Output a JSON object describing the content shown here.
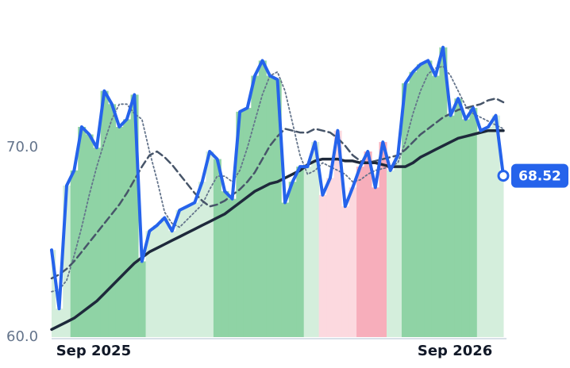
{
  "chart_data": {
    "type": "line",
    "categories": [
      null,
      null,
      null,
      null,
      null,
      null,
      "Sep 2025",
      null,
      null,
      null,
      null,
      null,
      null,
      null,
      null,
      null,
      null,
      null,
      null,
      null,
      null,
      null,
      null,
      null,
      null,
      null,
      null,
      null,
      null,
      null,
      null,
      null,
      null,
      null,
      null,
      null,
      null,
      null,
      null,
      null,
      null,
      null,
      null,
      null,
      null,
      null,
      null,
      null,
      null,
      null,
      null,
      null,
      null,
      null,
      "Sep 2026",
      null,
      null,
      null,
      null,
      null,
      null
    ],
    "series": [
      {
        "color": "#2563eb",
        "style": "solid",
        "width": 4,
        "values": [
          64.6,
          61.5,
          68.0,
          68.8,
          71.1,
          70.7,
          70.0,
          73.0,
          72.3,
          71.1,
          71.5,
          72.8,
          64.0,
          65.6,
          65.9,
          66.3,
          65.6,
          66.7,
          66.9,
          67.1,
          68.2,
          69.8,
          69.4,
          67.7,
          67.3,
          71.9,
          72.1,
          73.8,
          74.6,
          73.8,
          73.6,
          67.1,
          68.2,
          69.0,
          69.0,
          70.3,
          67.5,
          68.4,
          70.9,
          66.9,
          67.9,
          69.0,
          69.8,
          67.9,
          70.3,
          68.8,
          69.6,
          73.4,
          74.0,
          74.4,
          74.6,
          73.8,
          75.3,
          71.7,
          72.6,
          71.5,
          72.1,
          70.9,
          71.1,
          71.7,
          68.52
        ]
      },
      {
        "color": "#1e293b",
        "style": "solid",
        "width": 3.5,
        "values": [
          60.4,
          60.6,
          60.8,
          61.0,
          61.3,
          61.6,
          61.9,
          62.3,
          62.7,
          63.1,
          63.5,
          63.9,
          64.2,
          64.5,
          64.7,
          64.9,
          65.1,
          65.3,
          65.5,
          65.7,
          65.9,
          66.1,
          66.3,
          66.5,
          66.8,
          67.1,
          67.4,
          67.7,
          67.9,
          68.1,
          68.2,
          68.4,
          68.6,
          68.8,
          69.1,
          69.3,
          69.4,
          69.4,
          69.4,
          69.3,
          69.3,
          69.2,
          69.2,
          69.2,
          69.1,
          69.0,
          69.0,
          69.0,
          69.2,
          69.5,
          69.7,
          69.9,
          70.1,
          70.3,
          70.5,
          70.6,
          70.7,
          70.8,
          70.9,
          70.9,
          70.9
        ]
      },
      {
        "color": "#475569",
        "style": "dashed",
        "width": 2.5,
        "values": [
          63.1,
          63.3,
          63.6,
          64.0,
          64.5,
          65.0,
          65.5,
          66.0,
          66.5,
          67.0,
          67.6,
          68.3,
          69.0,
          69.6,
          69.8,
          69.5,
          69.1,
          68.6,
          68.1,
          67.6,
          67.2,
          66.9,
          67.0,
          67.2,
          67.5,
          67.8,
          68.2,
          68.7,
          69.4,
          70.1,
          70.6,
          71.0,
          70.9,
          70.8,
          70.8,
          71.0,
          70.9,
          70.8,
          70.5,
          70.1,
          69.6,
          69.3,
          69.2,
          69.3,
          69.4,
          69.5,
          69.6,
          69.9,
          70.3,
          70.7,
          71.0,
          71.3,
          71.6,
          71.8,
          72.0,
          72.1,
          72.2,
          72.3,
          72.5,
          72.6,
          72.4
        ]
      },
      {
        "color": "#64748b",
        "style": "dotted",
        "width": 1.8,
        "values": [
          62.4,
          62.5,
          63.0,
          64.3,
          65.8,
          67.5,
          69.0,
          70.3,
          71.5,
          72.3,
          72.3,
          71.8,
          71.5,
          69.8,
          68.3,
          66.6,
          66.0,
          65.8,
          66.2,
          66.6,
          67.0,
          67.8,
          68.5,
          68.5,
          68.2,
          68.8,
          70.0,
          71.4,
          72.8,
          73.8,
          74.0,
          73.0,
          71.3,
          69.6,
          68.6,
          68.8,
          69.2,
          69.0,
          68.8,
          68.6,
          68.2,
          68.3,
          68.6,
          68.8,
          68.9,
          69.0,
          69.2,
          70.3,
          71.8,
          73.0,
          73.9,
          74.2,
          74.3,
          73.8,
          73.0,
          72.2,
          71.8,
          71.6,
          71.4,
          71.2,
          71.0
        ]
      }
    ],
    "band_colors": [
      "#d4eedc",
      "#d4eedc",
      "#d4eedc",
      "#8fd3a5",
      "#8fd3a5",
      "#8fd3a5",
      "#8fd3a5",
      "#8fd3a5",
      "#8fd3a5",
      "#8fd3a5",
      "#8fd3a5",
      "#8fd3a5",
      "#8fd3a5",
      "#d4eedc",
      "#d4eedc",
      "#d4eedc",
      "#d4eedc",
      "#d4eedc",
      "#d4eedc",
      "#d4eedc",
      "#d4eedc",
      "#d4eedc",
      "#8fd3a5",
      "#8fd3a5",
      "#8fd3a5",
      "#8fd3a5",
      "#8fd3a5",
      "#8fd3a5",
      "#8fd3a5",
      "#8fd3a5",
      "#8fd3a5",
      "#8fd3a5",
      "#8fd3a5",
      "#8fd3a5",
      "#d4eedc",
      "#d4eedc",
      "#fcd9df",
      "#fcd9df",
      "#fcd9df",
      "#fcd9df",
      "#fcd9df",
      "#f7aebb",
      "#f7aebb",
      "#f7aebb",
      "#f7aebb",
      "#d4eedc",
      "#d4eedc",
      "#8fd3a5",
      "#8fd3a5",
      "#8fd3a5",
      "#8fd3a5",
      "#8fd3a5",
      "#8fd3a5",
      "#8fd3a5",
      "#8fd3a5",
      "#8fd3a5",
      "#8fd3a5",
      "#d4eedc",
      "#d4eedc",
      "#d4eedc",
      "#d4eedc"
    ],
    "ylim": [
      60,
      77.8
    ],
    "yticks": [
      {
        "value": 60,
        "label": "60.0"
      },
      {
        "value": 70,
        "label": "70.0"
      }
    ],
    "grid": false
  }
}
